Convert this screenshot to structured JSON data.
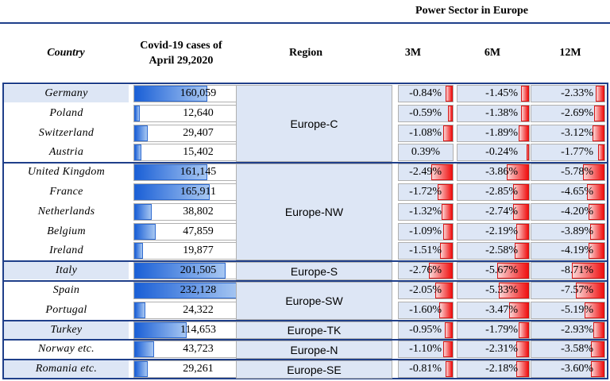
{
  "header": {
    "section_title": "Power Sector in Europe",
    "country": "Country",
    "cases_line1": "Covid-19 cases of",
    "cases_line2": "April 29,2020",
    "region": "Region",
    "m3": "3M",
    "m6": "6M",
    "m12": "12M"
  },
  "rows": [
    {
      "country": "Germany",
      "cases": "160,059",
      "cases_value": 160059,
      "m3": "-0.84%",
      "m3_value": -0.84,
      "m6": "-1.45%",
      "m6_value": -1.45,
      "m12": "-2.33%",
      "m12_value": -2.33
    },
    {
      "country": "Poland",
      "cases": "12,640",
      "cases_value": 12640,
      "m3": "-0.59%",
      "m3_value": -0.59,
      "m6": "-1.38%",
      "m6_value": -1.38,
      "m12": "-2.69%",
      "m12_value": -2.69
    },
    {
      "country": "Switzerland",
      "cases": "29,407",
      "cases_value": 29407,
      "m3": "-1.08%",
      "m3_value": -1.08,
      "m6": "-1.89%",
      "m6_value": -1.89,
      "m12": "-3.12%",
      "m12_value": -3.12
    },
    {
      "country": "Austria",
      "cases": "15,402",
      "cases_value": 15402,
      "m3": "0.39%",
      "m3_value": 0.39,
      "m6": "-0.24%",
      "m6_value": -0.24,
      "m12": "-1.77%",
      "m12_value": -1.77
    },
    {
      "country": "United Kingdom",
      "cases": "161,145",
      "cases_value": 161145,
      "m3": "-2.49%",
      "m3_value": -2.49,
      "m6": "-3.86%",
      "m6_value": -3.86,
      "m12": "-5.78%",
      "m12_value": -5.78
    },
    {
      "country": "France",
      "cases": "165,911",
      "cases_value": 165911,
      "m3": "-1.72%",
      "m3_value": -1.72,
      "m6": "-2.85%",
      "m6_value": -2.85,
      "m12": "-4.65%",
      "m12_value": -4.65
    },
    {
      "country": "Netherlands",
      "cases": "38,802",
      "cases_value": 38802,
      "m3": "-1.32%",
      "m3_value": -1.32,
      "m6": "-2.74%",
      "m6_value": -2.74,
      "m12": "-4.20%",
      "m12_value": -4.2
    },
    {
      "country": "Belgium",
      "cases": "47,859",
      "cases_value": 47859,
      "m3": "-1.09%",
      "m3_value": -1.09,
      "m6": "-2.19%",
      "m6_value": -2.19,
      "m12": "-3.89%",
      "m12_value": -3.89
    },
    {
      "country": "Ireland",
      "cases": "19,877",
      "cases_value": 19877,
      "m3": "-1.51%",
      "m3_value": -1.51,
      "m6": "-2.58%",
      "m6_value": -2.58,
      "m12": "-4.19%",
      "m12_value": -4.19
    },
    {
      "country": "Italy",
      "cases": "201,505",
      "cases_value": 201505,
      "m3": "-2.76%",
      "m3_value": -2.76,
      "m6": "-5.67%",
      "m6_value": -5.67,
      "m12": "-8.71%",
      "m12_value": -8.71
    },
    {
      "country": "Spain",
      "cases": "232,128",
      "cases_value": 232128,
      "m3": "-2.05%",
      "m3_value": -2.05,
      "m6": "-5.33%",
      "m6_value": -5.33,
      "m12": "-7.57%",
      "m12_value": -7.57
    },
    {
      "country": "Portugal",
      "cases": "24,322",
      "cases_value": 24322,
      "m3": "-1.60%",
      "m3_value": -1.6,
      "m6": "-3.47%",
      "m6_value": -3.47,
      "m12": "-5.19%",
      "m12_value": -5.19
    },
    {
      "country": "Turkey",
      "cases": "114,653",
      "cases_value": 114653,
      "m3": "-0.95%",
      "m3_value": -0.95,
      "m6": "-1.79%",
      "m6_value": -1.79,
      "m12": "-2.93%",
      "m12_value": -2.93
    },
    {
      "country": "Norway etc.",
      "cases": "43,723",
      "cases_value": 43723,
      "m3": "-1.10%",
      "m3_value": -1.1,
      "m6": "-2.31%",
      "m6_value": -2.31,
      "m12": "-3.58%",
      "m12_value": -3.58
    },
    {
      "country": "Romania etc.",
      "cases": "29,261",
      "cases_value": 29261,
      "m3": "-0.81%",
      "m3_value": -0.81,
      "m6": "-2.18%",
      "m6_value": -2.18,
      "m12": "-3.60%",
      "m12_value": -3.6
    }
  ],
  "regions": [
    {
      "label": "Europe-C",
      "first_row": 0,
      "row_count": 4
    },
    {
      "label": "Europe-NW",
      "first_row": 4,
      "row_count": 5
    },
    {
      "label": "Europe-S",
      "first_row": 9,
      "row_count": 1
    },
    {
      "label": "Europe-SW",
      "first_row": 10,
      "row_count": 2
    },
    {
      "label": "Europe-TK",
      "first_row": 12,
      "row_count": 1
    },
    {
      "label": "Europe-N",
      "first_row": 13,
      "row_count": 1
    },
    {
      "label": "Europe-SE",
      "first_row": 14,
      "row_count": 1
    }
  ],
  "colors": {
    "cases_bar": "#1a5fd6",
    "negative_bar": "#f01010",
    "region_fill": "#dde6f5",
    "group_border": "#1f3f8a"
  }
}
